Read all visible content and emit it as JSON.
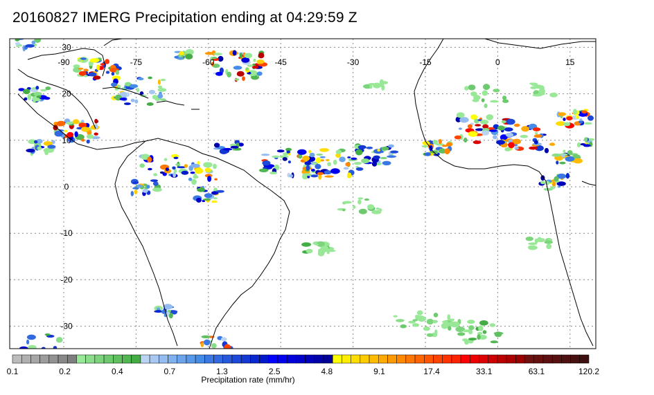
{
  "title": "20160827 IMERG Precipitation ending at 04:29:59 Z",
  "longitude_labels": [
    "-90",
    "-75",
    "-60",
    "-45",
    "-30",
    "-15",
    "0",
    "15"
  ],
  "latitude_labels": [
    "30",
    "20",
    "10",
    "0",
    "-10",
    "-20",
    "-30"
  ],
  "colorbar": {
    "label": "Precipitation rate (mm/hr)",
    "tick_labels": [
      "0.1",
      "0.2",
      "0.4",
      "0.7",
      "1.3",
      "2.5",
      "4.8",
      "9.1",
      "17.4",
      "33.1",
      "63.1",
      "120.2"
    ],
    "colors": [
      "#bcbcbc",
      "#b0b0b0",
      "#a6a6a6",
      "#9c9c9c",
      "#929292",
      "#888888",
      "#7e7e7e",
      "#98e898",
      "#8ade8a",
      "#7cd47c",
      "#6eca6e",
      "#60c060",
      "#52b652",
      "#44ac44",
      "#bcd4f4",
      "#a8c8f2",
      "#94bcf0",
      "#80b0ee",
      "#6ca4ec",
      "#5898ea",
      "#448ce8",
      "#3c78e4",
      "#3268e0",
      "#2858dc",
      "#1e48d8",
      "#1438d4",
      "#0a28d0",
      "#0018cc",
      "#0000ff",
      "#0000ee",
      "#0000dd",
      "#0000cc",
      "#0000bb",
      "#0000aa",
      "#000099",
      "#ffff00",
      "#ffee00",
      "#ffdd00",
      "#ffcc00",
      "#ffbb00",
      "#ffaa00",
      "#ff9900",
      "#ff8800",
      "#ff7700",
      "#ff6600",
      "#ff5500",
      "#ff4400",
      "#ff3300",
      "#ff2200",
      "#ff0000",
      "#ee0000",
      "#dd0000",
      "#cc0000",
      "#bb0000",
      "#aa0000",
      "#990000",
      "#6e1010",
      "#661010",
      "#5e1010",
      "#561010",
      "#4e1010",
      "#461010",
      "#3e1010"
    ]
  },
  "colors": {
    "coastline": "#000000",
    "grid": "#888888"
  }
}
